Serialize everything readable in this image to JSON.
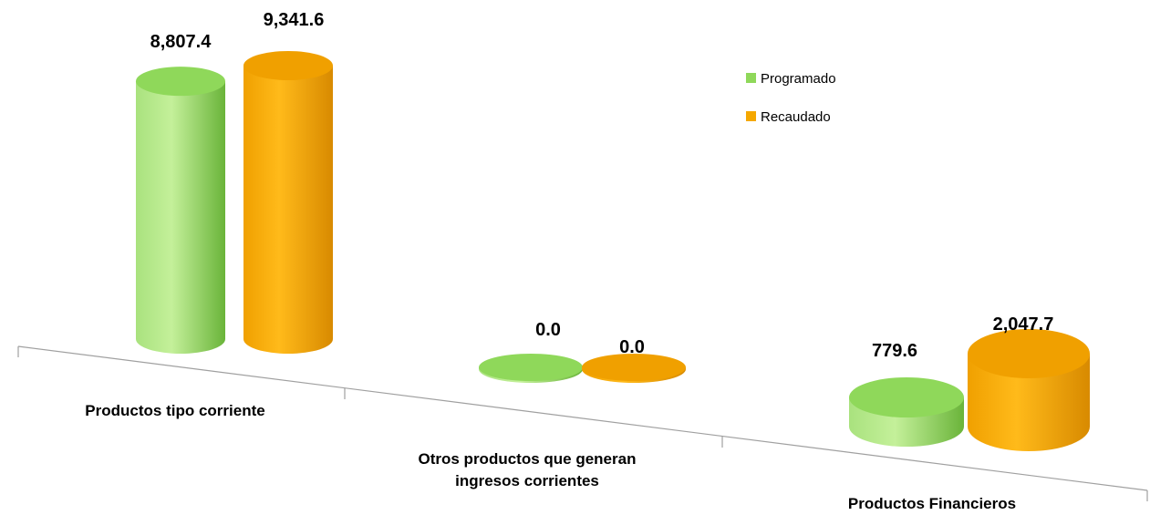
{
  "chart_data": {
    "type": "bar",
    "style": "3d-cylinder",
    "categories": [
      "Productos tipo corriente",
      "Otros productos que  generan ingresos corrientes",
      "Productos Financieros"
    ],
    "category_lines": [
      [
        "Productos tipo corriente"
      ],
      [
        "Otros productos que  generan",
        "ingresos corrientes"
      ],
      [
        "Productos Financieros"
      ]
    ],
    "series": [
      {
        "name": "Programado",
        "values": [
          8807.4,
          0.0,
          779.6
        ],
        "labels": [
          "8,807.4",
          "0.0",
          "779.6"
        ],
        "color": "#8fd85a"
      },
      {
        "name": "Recaudado",
        "values": [
          9341.6,
          0.0,
          2047.7
        ],
        "labels": [
          "9,341.6",
          "0.0",
          "2,047.7"
        ],
        "color": "#f5a800"
      }
    ],
    "ylim": [
      0,
      9341.6
    ],
    "legend": "top-right",
    "grid": false
  }
}
